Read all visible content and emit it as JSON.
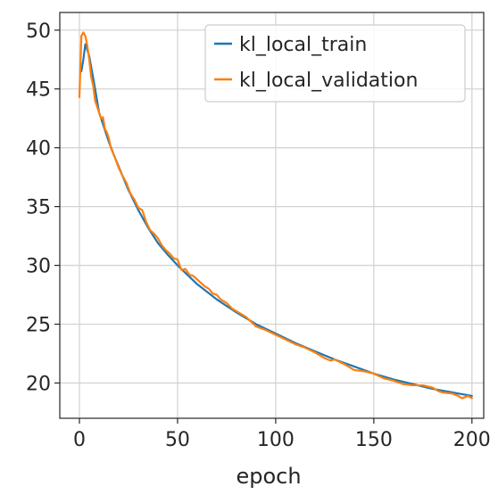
{
  "chart_data": {
    "type": "line",
    "xlabel": "epoch",
    "ylabel": "",
    "title": "",
    "xlim": [
      -10,
      206
    ],
    "ylim": [
      17,
      51.5
    ],
    "xticks": [
      0,
      50,
      100,
      150,
      200
    ],
    "yticks": [
      20,
      25,
      30,
      35,
      40,
      45,
      50
    ],
    "grid": true,
    "legend_position": "top-right",
    "series": [
      {
        "name": "kl_local_train",
        "color": "#1f77b4",
        "x": [
          1,
          2,
          3,
          5,
          8,
          10,
          12,
          15,
          18,
          20,
          25,
          30,
          35,
          40,
          45,
          50,
          60,
          70,
          80,
          90,
          100,
          110,
          120,
          130,
          140,
          150,
          160,
          170,
          180,
          190,
          200
        ],
        "y": [
          46.5,
          47.5,
          48.8,
          47.8,
          45.0,
          43.0,
          42.0,
          40.5,
          39.2,
          38.4,
          36.4,
          34.7,
          33.2,
          31.9,
          30.9,
          30.0,
          28.4,
          27.1,
          26.0,
          25.0,
          24.2,
          23.4,
          22.7,
          22.0,
          21.4,
          20.8,
          20.3,
          19.9,
          19.5,
          19.2,
          18.9
        ]
      },
      {
        "name": "kl_local_validation",
        "color": "#ff7f0e",
        "x": [
          0,
          1,
          2,
          3,
          4,
          5,
          6,
          7,
          8,
          9,
          10,
          11,
          12,
          13,
          14,
          15,
          16,
          17,
          18,
          20,
          22,
          24,
          26,
          28,
          30,
          32,
          34,
          36,
          38,
          40,
          42,
          44,
          46,
          48,
          50,
          52,
          54,
          56,
          58,
          60,
          62,
          64,
          66,
          68,
          70,
          72,
          75,
          78,
          80,
          85,
          90,
          95,
          100,
          105,
          110,
          115,
          120,
          125,
          128,
          130,
          135,
          140,
          145,
          150,
          155,
          160,
          165,
          170,
          175,
          180,
          183,
          185,
          190,
          193,
          195,
          198,
          200
        ],
        "y": [
          44.3,
          49.5,
          49.8,
          49.5,
          48.7,
          47.5,
          46.0,
          45.3,
          44.0,
          43.5,
          43.0,
          42.5,
          42.6,
          41.6,
          41.3,
          40.8,
          40.0,
          39.6,
          39.2,
          38.3,
          37.6,
          37.0,
          36.1,
          35.6,
          34.9,
          34.7,
          33.7,
          33.0,
          32.7,
          32.3,
          31.7,
          31.3,
          31.0,
          30.6,
          30.5,
          29.6,
          29.7,
          29.2,
          29.1,
          28.8,
          28.5,
          28.2,
          28.0,
          27.6,
          27.5,
          27.1,
          26.8,
          26.3,
          26.1,
          25.6,
          24.8,
          24.5,
          24.1,
          23.7,
          23.3,
          23.0,
          22.6,
          22.1,
          21.9,
          22.0,
          21.6,
          21.1,
          21.0,
          20.8,
          20.4,
          20.2,
          19.9,
          19.8,
          19.8,
          19.6,
          19.3,
          19.2,
          19.1,
          18.9,
          18.7,
          18.9,
          18.7
        ]
      }
    ]
  }
}
